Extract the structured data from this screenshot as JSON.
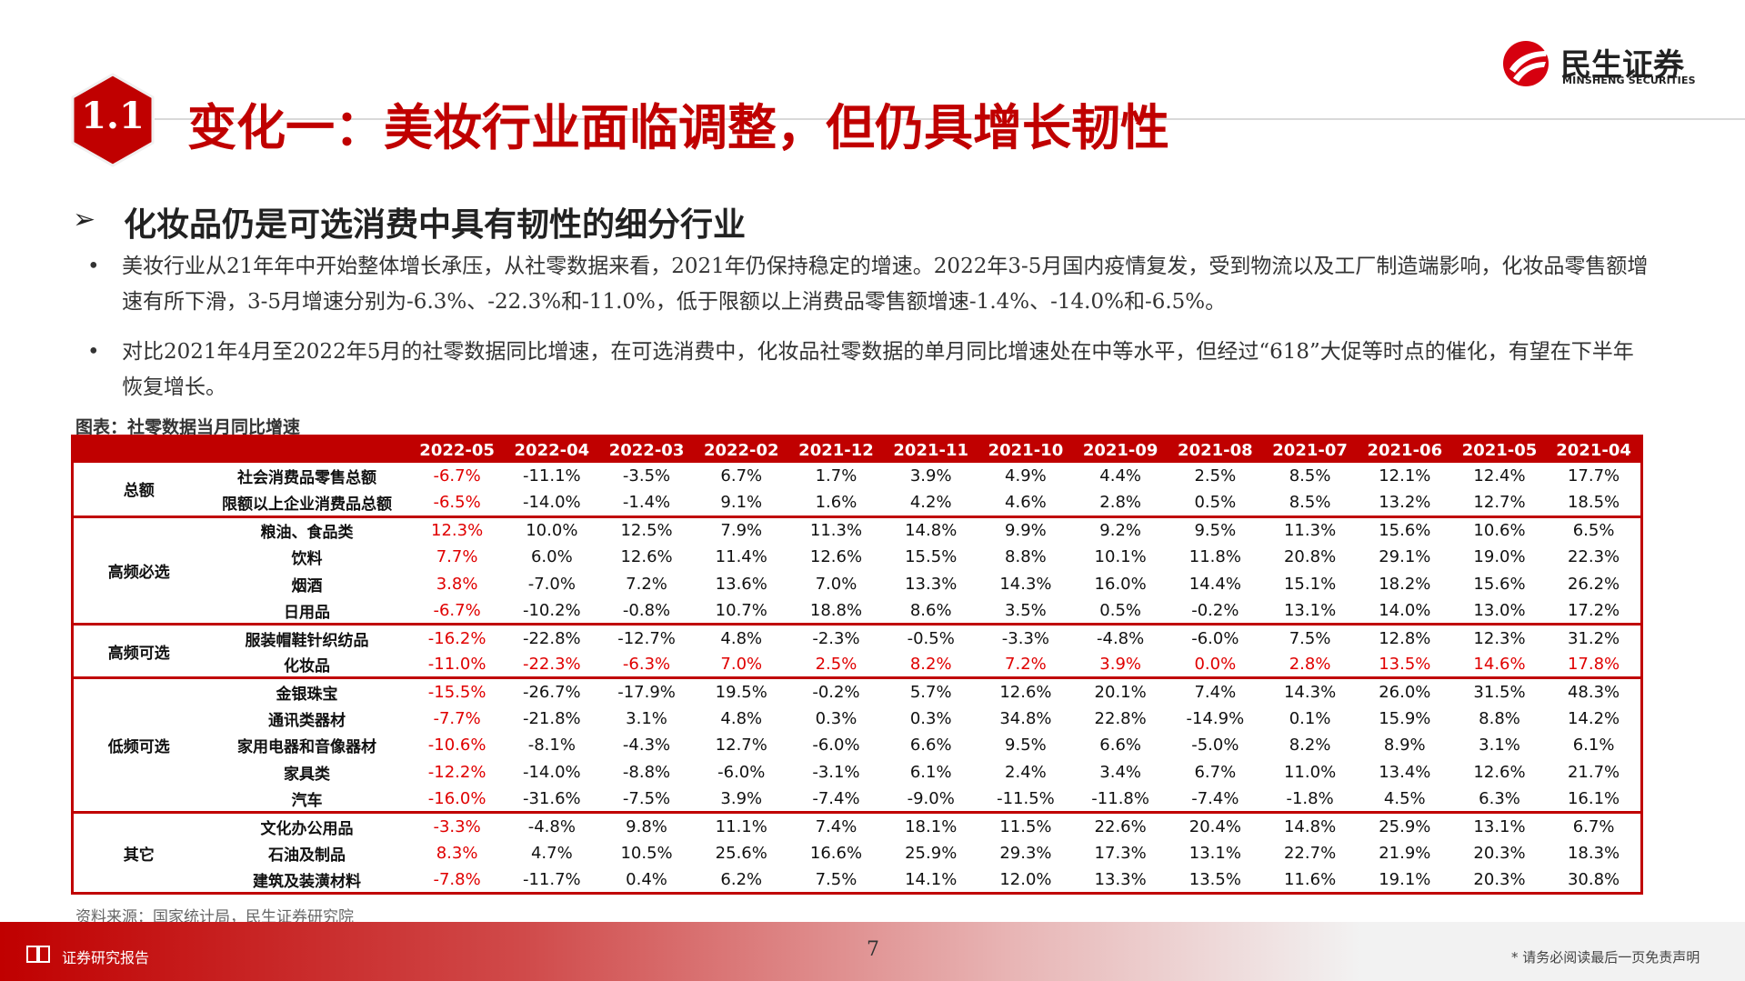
{
  "header": {
    "section_number": "1.1",
    "title": "变化一：美妆行业面临调整，但仍具增长韧性",
    "logo_cn": "民生证券",
    "logo_en": "MINSHENG SECURITIES"
  },
  "subtitle": "化妆品仍是可选消费中具有韧性的细分行业",
  "bullets": [
    "美妆行业从21年年中开始整体增长承压，从社零数据来看，2021年仍保持稳定的增速。2022年3-5月国内疫情复发，受到物流以及工厂制造端影响，化妆品零售额增速有所下滑，3-5月增速分别为-6.3%、-22.3%和-11.0%，低于限额以上消费品零售额增速-1.4%、-14.0%和-6.5%。",
    "对比2021年4月至2022年5月的社零数据同比增速，在可选消费中，化妆品社零数据的单月同比增速处在中等水平，但经过“618”大促等时点的催化，有望在下半年恢复增长。"
  ],
  "table": {
    "caption": "图表：社零数据当月同比增速",
    "columns": [
      "2022-05",
      "2022-04",
      "2022-03",
      "2022-02",
      "2021-12",
      "2021-11",
      "2021-10",
      "2021-09",
      "2021-08",
      "2021-07",
      "2021-06",
      "2021-05",
      "2021-04"
    ],
    "groups": [
      {
        "name": "总额",
        "rows": [
          {
            "item": "社会消费品零售总额",
            "values": [
              "-6.7%",
              "-11.1%",
              "-3.5%",
              "6.7%",
              "1.7%",
              "3.9%",
              "4.9%",
              "4.4%",
              "2.5%",
              "8.5%",
              "12.1%",
              "12.4%",
              "17.7%"
            ],
            "highlight": false
          },
          {
            "item": "限额以上企业消费品总额",
            "values": [
              "-6.5%",
              "-14.0%",
              "-1.4%",
              "9.1%",
              "1.6%",
              "4.2%",
              "4.6%",
              "2.8%",
              "0.5%",
              "8.5%",
              "13.2%",
              "12.7%",
              "18.5%"
            ],
            "highlight": false
          }
        ]
      },
      {
        "name": "高频必选",
        "rows": [
          {
            "item": "粮油、食品类",
            "values": [
              "12.3%",
              "10.0%",
              "12.5%",
              "7.9%",
              "11.3%",
              "14.8%",
              "9.9%",
              "9.2%",
              "9.5%",
              "11.3%",
              "15.6%",
              "10.6%",
              "6.5%"
            ],
            "highlight": false
          },
          {
            "item": "饮料",
            "values": [
              "7.7%",
              "6.0%",
              "12.6%",
              "11.4%",
              "12.6%",
              "15.5%",
              "8.8%",
              "10.1%",
              "11.8%",
              "20.8%",
              "29.1%",
              "19.0%",
              "22.3%"
            ],
            "highlight": false
          },
          {
            "item": "烟酒",
            "values": [
              "3.8%",
              "-7.0%",
              "7.2%",
              "13.6%",
              "7.0%",
              "13.3%",
              "14.3%",
              "16.0%",
              "14.4%",
              "15.1%",
              "18.2%",
              "15.6%",
              "26.2%"
            ],
            "highlight": false
          },
          {
            "item": "日用品",
            "values": [
              "-6.7%",
              "-10.2%",
              "-0.8%",
              "10.7%",
              "18.8%",
              "8.6%",
              "3.5%",
              "0.5%",
              "-0.2%",
              "13.1%",
              "14.0%",
              "13.0%",
              "17.2%"
            ],
            "highlight": false
          }
        ]
      },
      {
        "name": "高频可选",
        "rows": [
          {
            "item": "服装帽鞋针织纺品",
            "values": [
              "-16.2%",
              "-22.8%",
              "-12.7%",
              "4.8%",
              "-2.3%",
              "-0.5%",
              "-3.3%",
              "-4.8%",
              "-6.0%",
              "7.5%",
              "12.8%",
              "12.3%",
              "31.2%"
            ],
            "highlight": false
          },
          {
            "item": "化妆品",
            "values": [
              "-11.0%",
              "-22.3%",
              "-6.3%",
              "7.0%",
              "2.5%",
              "8.2%",
              "7.2%",
              "3.9%",
              "0.0%",
              "2.8%",
              "13.5%",
              "14.6%",
              "17.8%"
            ],
            "highlight": true
          }
        ]
      },
      {
        "name": "低频可选",
        "rows": [
          {
            "item": "金银珠宝",
            "values": [
              "-15.5%",
              "-26.7%",
              "-17.9%",
              "19.5%",
              "-0.2%",
              "5.7%",
              "12.6%",
              "20.1%",
              "7.4%",
              "14.3%",
              "26.0%",
              "31.5%",
              "48.3%"
            ],
            "highlight": false
          },
          {
            "item": "通讯类器材",
            "values": [
              "-7.7%",
              "-21.8%",
              "3.1%",
              "4.8%",
              "0.3%",
              "0.3%",
              "34.8%",
              "22.8%",
              "-14.9%",
              "0.1%",
              "15.9%",
              "8.8%",
              "14.2%"
            ],
            "highlight": false
          },
          {
            "item": "家用电器和音像器材",
            "values": [
              "-10.6%",
              "-8.1%",
              "-4.3%",
              "12.7%",
              "-6.0%",
              "6.6%",
              "9.5%",
              "6.6%",
              "-5.0%",
              "8.2%",
              "8.9%",
              "3.1%",
              "6.1%"
            ],
            "highlight": false
          },
          {
            "item": "家具类",
            "values": [
              "-12.2%",
              "-14.0%",
              "-8.8%",
              "-6.0%",
              "-3.1%",
              "6.1%",
              "2.4%",
              "3.4%",
              "6.7%",
              "11.0%",
              "13.4%",
              "12.6%",
              "21.7%"
            ],
            "highlight": false
          },
          {
            "item": "汽车",
            "values": [
              "-16.0%",
              "-31.6%",
              "-7.5%",
              "3.9%",
              "-7.4%",
              "-9.0%",
              "-11.5%",
              "-11.8%",
              "-7.4%",
              "-1.8%",
              "4.5%",
              "6.3%",
              "16.1%"
            ],
            "highlight": false
          }
        ]
      },
      {
        "name": "其它",
        "rows": [
          {
            "item": "文化办公用品",
            "values": [
              "-3.3%",
              "-4.8%",
              "9.8%",
              "11.1%",
              "7.4%",
              "18.1%",
              "11.5%",
              "22.6%",
              "20.4%",
              "14.8%",
              "25.9%",
              "13.1%",
              "6.7%"
            ],
            "highlight": false
          },
          {
            "item": "石油及制品",
            "values": [
              "8.3%",
              "4.7%",
              "10.5%",
              "25.6%",
              "16.6%",
              "25.9%",
              "29.3%",
              "17.3%",
              "13.1%",
              "22.7%",
              "21.9%",
              "20.3%",
              "18.3%"
            ],
            "highlight": false
          },
          {
            "item": "建筑及装潢材料",
            "values": [
              "-7.8%",
              "-11.7%",
              "0.4%",
              "6.2%",
              "7.5%",
              "14.1%",
              "12.0%",
              "13.3%",
              "13.5%",
              "11.6%",
              "19.1%",
              "20.3%",
              "30.8%"
            ],
            "highlight": false
          }
        ]
      }
    ],
    "source": "资料来源：国家统计局，民生证券研究院"
  },
  "footer": {
    "label": "证券研究报告",
    "page_number": "7",
    "disclaimer": "* 请务必阅读最后一页免责声明"
  },
  "colors": {
    "brand_red": "#c00000",
    "highlight_red": "#e00000"
  }
}
